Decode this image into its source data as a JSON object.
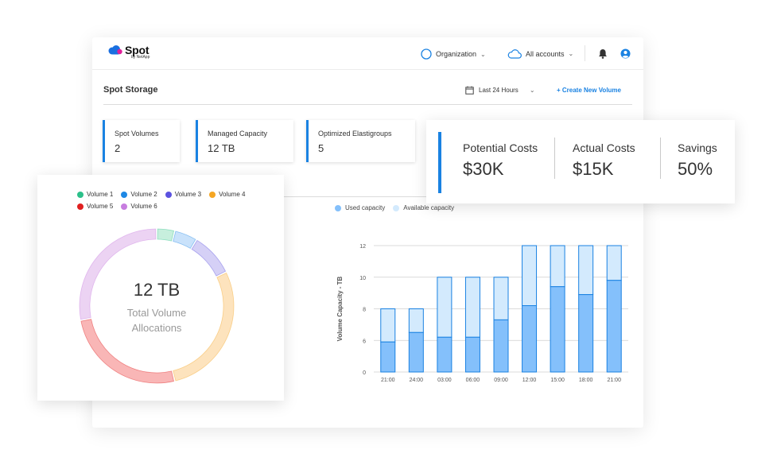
{
  "header": {
    "logo_text": "Spot",
    "logo_sub": "by NetApp",
    "organization_label": "Organization",
    "accounts_label": "All accounts"
  },
  "page": {
    "title": "Spot Storage",
    "time_filter": "Last 24 Hours",
    "create_button": "+ Create New Volume"
  },
  "stats": [
    {
      "label": "Spot Volumes",
      "value": "2"
    },
    {
      "label": "Managed Capacity",
      "value": "12 TB"
    },
    {
      "label": "Optimized Elastigroups",
      "value": "5"
    }
  ],
  "costs": [
    {
      "label": "Potential Costs",
      "value": "$30K"
    },
    {
      "label": "Actual Costs",
      "value": "$15K"
    },
    {
      "label": "Savings",
      "value": "50%"
    }
  ],
  "donut": {
    "center_value": "12 TB",
    "center_label_line1": "Total Volume",
    "center_label_line2": "Allocations",
    "legend": [
      {
        "name": "Volume 1",
        "color": "#2cc08a"
      },
      {
        "name": "Volume 2",
        "color": "#1e88e5"
      },
      {
        "name": "Volume 3",
        "color": "#5b52e0"
      },
      {
        "name": "Volume 4",
        "color": "#f5a623"
      },
      {
        "name": "Volume 5",
        "color": "#e02020"
      },
      {
        "name": "Volume 6",
        "color": "#c77ddf"
      }
    ]
  },
  "chart_data": [
    {
      "type": "pie",
      "title": "",
      "categories": [
        "Volume 1",
        "Volume 2",
        "Volume 3",
        "Volume 4",
        "Volume 5",
        "Volume 6"
      ],
      "values": [
        0.35,
        0.45,
        0.85,
        2.65,
        2.4,
        2.6
      ],
      "slice_colors": [
        "#c7efdd",
        "#c9e2fb",
        "#d5d0f6",
        "#fde3bd",
        "#f9b6b6",
        "#ecd3f3"
      ]
    },
    {
      "type": "bar",
      "ylabel": "Volume Capacity - TB",
      "xlabel": "",
      "categories": [
        "21:00",
        "24:00",
        "03:00",
        "06:00",
        "09:00",
        "12:00",
        "15:00",
        "18:00",
        "21:00"
      ],
      "yticks": [
        0,
        6,
        8,
        10,
        12
      ],
      "series": [
        {
          "name": "Used capacity",
          "color": "#84c0fb",
          "values": [
            5.7,
            6.5,
            6.2,
            6.2,
            7.3,
            8.2,
            9.4,
            8.9,
            9.8
          ]
        },
        {
          "name": "Available capacity",
          "color": "#d3eafd",
          "values": [
            2.3,
            1.5,
            3.8,
            3.8,
            2.7,
            3.8,
            2.6,
            3.1,
            2.2
          ]
        }
      ]
    }
  ]
}
